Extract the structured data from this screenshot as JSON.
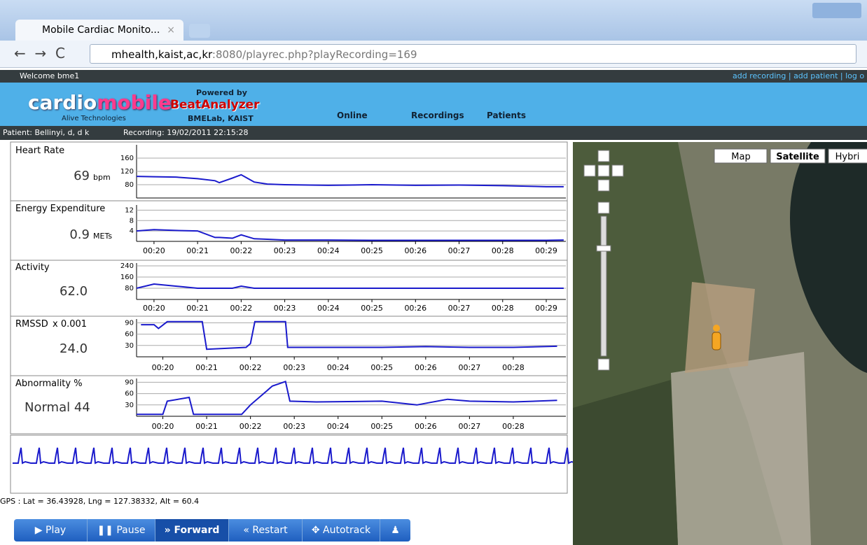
{
  "browser": {
    "tab_title": "Mobile Cardiac Monito...",
    "url_host": "mhealth,kaist,ac,kr",
    "url_path": ":8080/playrec.php?playRecording=169"
  },
  "topbar": {
    "welcome": "Welcome bme1",
    "links": [
      "add recording",
      "add patient",
      "log o"
    ]
  },
  "header": {
    "logo_a": "cardio",
    "logo_b": "mobile",
    "logo_sub": "Alive Technologies",
    "powered": "Powered by",
    "brand": "BeatAnalyzer",
    "lab": "BMELab, KAIST",
    "nav": [
      "Online",
      "Recordings",
      "Patients"
    ]
  },
  "patient_bar": {
    "patient": "Patient: Bellinyi, d, d k",
    "recording": "Recording: 19/02/2011 22:15:28"
  },
  "chart_data": [
    {
      "type": "line",
      "title": "Heart Rate",
      "reading": "69",
      "unit": "bpm",
      "color": "#1a1acc",
      "x": [
        19.6,
        20.0,
        20.5,
        21.0,
        21.4,
        21.5,
        21.8,
        22.0,
        22.3,
        22.6,
        23.0,
        24.0,
        25.0,
        26.0,
        27.0,
        28.0,
        28.7,
        29.0,
        29.4
      ],
      "values": [
        105,
        104,
        103,
        98,
        92,
        86,
        100,
        110,
        88,
        82,
        80,
        78,
        80,
        78,
        79,
        77,
        75,
        74,
        74
      ],
      "xlim": [
        19.6,
        29.45
      ],
      "ylim": [
        40,
        200
      ],
      "yticks": [
        80,
        120,
        160
      ]
    },
    {
      "type": "line",
      "title": "Energy Expenditure",
      "reading": "0.9",
      "unit": "METs",
      "color": "#1a1acc",
      "x": [
        19.6,
        20.0,
        20.5,
        21.0,
        21.4,
        21.5,
        21.8,
        22.0,
        22.3,
        22.6,
        23.0,
        24.0,
        25.0,
        26.0,
        27.0,
        28.0,
        28.7,
        29.0,
        29.4
      ],
      "values": [
        4,
        4.5,
        4.2,
        4,
        1.5,
        1.5,
        1.2,
        2.5,
        1,
        0.8,
        0.5,
        0.5,
        0.4,
        0.4,
        0.4,
        0.4,
        0.4,
        0.4,
        0.5
      ],
      "xlim": [
        19.6,
        29.45
      ],
      "ylim": [
        0,
        14
      ],
      "yticks": [
        4,
        8,
        12
      ],
      "xticks": [
        {
          "value": 20,
          "label": "00:20"
        },
        {
          "value": 21,
          "label": "00:21"
        },
        {
          "value": 22,
          "label": "00:22"
        },
        {
          "value": 23,
          "label": "00:23"
        },
        {
          "value": 24,
          "label": "00:24"
        },
        {
          "value": 25,
          "label": "00:25"
        },
        {
          "value": 26,
          "label": "00:26"
        },
        {
          "value": 27,
          "label": "00:27"
        },
        {
          "value": 28,
          "label": "00:28"
        },
        {
          "value": 29,
          "label": "00:29"
        }
      ]
    },
    {
      "type": "line",
      "title": "Activity",
      "reading": "62.0",
      "color": "#1a1acc",
      "x": [
        19.6,
        20.0,
        20.5,
        21.0,
        21.4,
        21.5,
        21.8,
        22.0,
        22.3,
        22.6,
        23.0,
        24.0,
        25.0,
        26.0,
        27.0,
        28.0,
        28.7,
        29.0,
        29.4
      ],
      "values": [
        80,
        110,
        95,
        80,
        80,
        80,
        80,
        95,
        80,
        80,
        80,
        80,
        80,
        80,
        80,
        80,
        80,
        80,
        80
      ],
      "xlim": [
        19.6,
        29.45
      ],
      "ylim": [
        0,
        260
      ],
      "yticks": [
        80,
        160,
        240
      ],
      "xticks": [
        {
          "value": 20,
          "label": "00:20"
        },
        {
          "value": 21,
          "label": "00:21"
        },
        {
          "value": 22,
          "label": "00:22"
        },
        {
          "value": 23,
          "label": "00:23"
        },
        {
          "value": 24,
          "label": "00:24"
        },
        {
          "value": 25,
          "label": "00:25"
        },
        {
          "value": 26,
          "label": "00:26"
        },
        {
          "value": 27,
          "label": "00:27"
        },
        {
          "value": 28,
          "label": "00:28"
        },
        {
          "value": 29,
          "label": "00:29"
        }
      ]
    },
    {
      "type": "line",
      "title": "RMSSD",
      "scale_note": "x 0.001",
      "reading": "24.0",
      "color": "#1a1acc",
      "x": [
        19.5,
        19.8,
        19.9,
        20.1,
        20.2,
        20.9,
        21.0,
        21.9,
        22.0,
        22.1,
        22.8,
        22.85,
        24,
        25,
        26,
        27,
        28,
        29
      ],
      "values": [
        85,
        85,
        75,
        93,
        93,
        93,
        20,
        25,
        35,
        93,
        93,
        25,
        25,
        25,
        27,
        25,
        25,
        28
      ],
      "xlim": [
        19.4,
        29.2
      ],
      "ylim": [
        0,
        100
      ],
      "yticks": [
        30,
        60,
        90
      ],
      "xticks": [
        {
          "value": 20,
          "label": "00:20"
        },
        {
          "value": 21,
          "label": "00:21"
        },
        {
          "value": 22,
          "label": "00:22"
        },
        {
          "value": 23,
          "label": "00:23"
        },
        {
          "value": 24,
          "label": "00:24"
        },
        {
          "value": 25,
          "label": "00:25"
        },
        {
          "value": 26,
          "label": "00:26"
        },
        {
          "value": 27,
          "label": "00:27"
        },
        {
          "value": 28,
          "label": "00:28"
        }
      ]
    },
    {
      "type": "line",
      "title": "Abnormality %",
      "reading": "Normal 44",
      "color": "#1a1acc",
      "x": [
        19.4,
        20.0,
        20.1,
        20.6,
        20.7,
        21.8,
        22.0,
        22.3,
        22.5,
        22.8,
        22.9,
        23.5,
        25,
        25.8,
        26.5,
        27,
        28,
        29
      ],
      "values": [
        5,
        5,
        40,
        50,
        5,
        5,
        30,
        60,
        80,
        92,
        40,
        38,
        40,
        30,
        45,
        40,
        38,
        42
      ],
      "xlim": [
        19.4,
        29.2
      ],
      "ylim": [
        0,
        100
      ],
      "yticks": [
        30,
        60,
        90
      ],
      "xticks": [
        {
          "value": 20,
          "label": "00:20"
        },
        {
          "value": 21,
          "label": "00:21"
        },
        {
          "value": 22,
          "label": "00:22"
        },
        {
          "value": 23,
          "label": "00:23"
        },
        {
          "value": 24,
          "label": "00:24"
        },
        {
          "value": 25,
          "label": "00:25"
        },
        {
          "value": 26,
          "label": "00:26"
        },
        {
          "value": 27,
          "label": "00:27"
        },
        {
          "value": 28,
          "label": "00:28"
        }
      ]
    }
  ],
  "gps": "GPS : Lat = 36.43928, Lng = 127.38332, Alt = 60.4",
  "map": {
    "types": [
      "Map",
      "Satellite",
      "Hybri"
    ]
  },
  "controls": [
    "Play",
    "Pause",
    "Forward",
    "Restart",
    "Autotrack"
  ]
}
